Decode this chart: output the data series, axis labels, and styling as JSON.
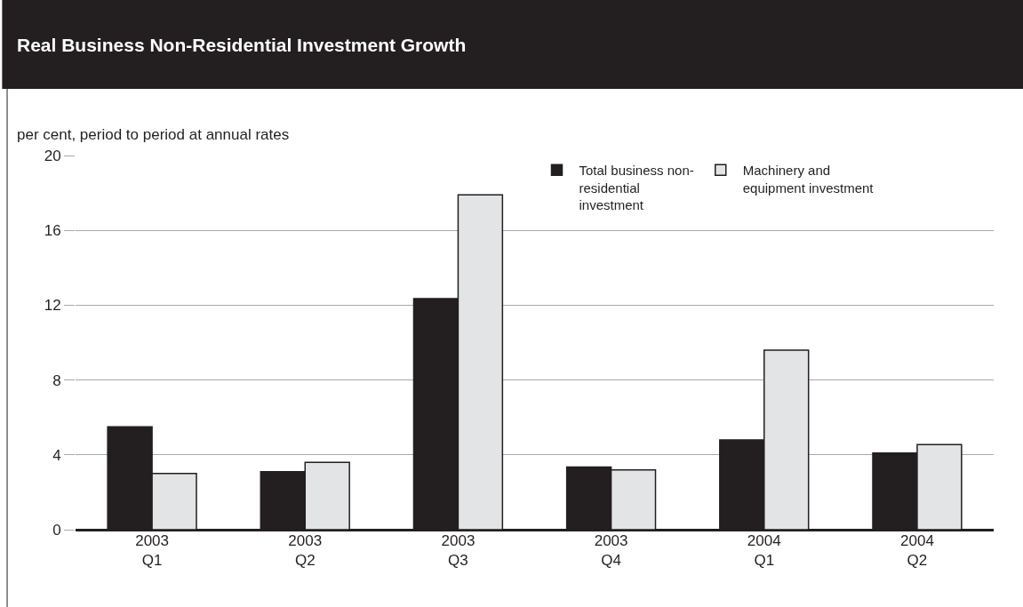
{
  "chart_data": {
    "type": "bar",
    "title": "Real Business Non-Residential Investment Growth",
    "ylabel": "per cent, period to period at annual rates",
    "categories": [
      "2003 Q1",
      "2003 Q2",
      "2003 Q3",
      "2003 Q4",
      "2004 Q1",
      "2004 Q2"
    ],
    "series": [
      {
        "name": "Total business non-residential investment",
        "color": "#231f20",
        "values": [
          5.5,
          3.1,
          12.35,
          3.35,
          4.8,
          4.1
        ]
      },
      {
        "name": "Machinery and equipment investment",
        "color": "#e3e4e6",
        "values": [
          3.0,
          3.6,
          17.9,
          3.2,
          9.6,
          4.55
        ]
      }
    ],
    "ylim": [
      0,
      20
    ],
    "yticks": [
      0,
      4,
      8,
      12,
      16,
      20
    ],
    "grid": "y",
    "legend": "top right"
  }
}
